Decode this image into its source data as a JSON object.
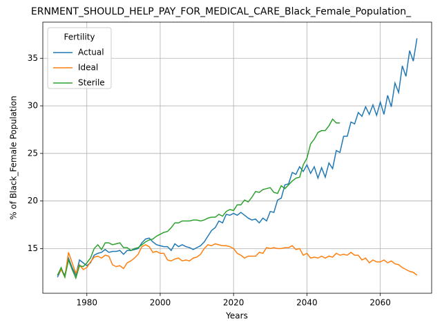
{
  "chart_data": {
    "type": "line",
    "title": "ERNMENT_SHOULD_HELP_PAY_FOR_MEDICAL_CARE_Black_Female_Population_",
    "xlabel": "Years",
    "ylabel": "% of Black_Female Population",
    "legend_title": "Fertility",
    "legend": "upper left",
    "grid": true,
    "xlim": [
      1968,
      2074
    ],
    "ylim": [
      10.3,
      38.8
    ],
    "xticks": [
      1980,
      2000,
      2020,
      2040,
      2060
    ],
    "yticks": [
      15,
      20,
      25,
      30,
      35
    ],
    "x": [
      1972,
      1973,
      1974,
      1975,
      1976,
      1977,
      1978,
      1979,
      1980,
      1981,
      1982,
      1983,
      1984,
      1985,
      1986,
      1987,
      1988,
      1989,
      1990,
      1991,
      1992,
      1993,
      1994,
      1995,
      1996,
      1997,
      1998,
      1999,
      2000,
      2001,
      2002,
      2003,
      2004,
      2005,
      2006,
      2007,
      2008,
      2009,
      2010,
      2011,
      2012,
      2013,
      2014,
      2015,
      2016,
      2017,
      2018,
      2019,
      2020,
      2021,
      2022,
      2023,
      2024,
      2025,
      2026,
      2027,
      2028,
      2029,
      2030,
      2031,
      2032,
      2033,
      2034,
      2035,
      2036,
      2037,
      2038,
      2039,
      2040,
      2041,
      2042,
      2043,
      2044,
      2045,
      2046,
      2047,
      2048,
      2049,
      2050,
      2051,
      2052,
      2053,
      2054,
      2055,
      2056,
      2057,
      2058,
      2059,
      2060,
      2061,
      2062,
      2063,
      2064,
      2065,
      2066,
      2067,
      2068,
      2069,
      2070
    ],
    "series": [
      {
        "name": "Actual",
        "color": "#1f77b4",
        "values": [
          12.0,
          12.8,
          12.2,
          14.0,
          13.0,
          12.2,
          13.8,
          13.5,
          13.2,
          13.5,
          14.3,
          14.5,
          14.6,
          14.9,
          14.6,
          14.7,
          14.7,
          14.8,
          14.4,
          14.8,
          14.8,
          14.9,
          15.0,
          15.6,
          16.0,
          16.1,
          15.7,
          15.4,
          15.3,
          15.2,
          15.2,
          14.8,
          15.5,
          15.2,
          15.4,
          15.2,
          15.1,
          14.9,
          15.1,
          15.3,
          15.7,
          16.3,
          16.9,
          17.2,
          17.9,
          17.7,
          18.6,
          18.5,
          18.7,
          18.5,
          18.8,
          18.5,
          18.2,
          18.0,
          18.1,
          17.7,
          18.2,
          17.9,
          18.9,
          18.8,
          20.1,
          20.3,
          21.7,
          21.8,
          23.0,
          22.8,
          23.6,
          23.1,
          23.8,
          22.9,
          23.6,
          22.4,
          23.5,
          22.5,
          24.0,
          23.4,
          25.3,
          25.1,
          26.8,
          26.8,
          28.3,
          28.1,
          29.3,
          28.9,
          29.9,
          29.1,
          30.1,
          29.0,
          30.4,
          29.1,
          31.1,
          29.9,
          32.4,
          31.4,
          34.2,
          33.1,
          35.8,
          34.7,
          37.1
        ]
      },
      {
        "name": "Ideal",
        "color": "#ff7f0e",
        "values": [
          12.2,
          12.8,
          12.0,
          14.6,
          13.5,
          12.4,
          13.3,
          12.8,
          13.0,
          13.6,
          14.1,
          14.2,
          14.0,
          14.3,
          14.2,
          13.3,
          13.1,
          13.2,
          12.9,
          13.5,
          13.7,
          14.0,
          14.4,
          15.2,
          15.4,
          15.2,
          14.6,
          14.7,
          14.5,
          14.5,
          13.8,
          13.7,
          13.9,
          14.0,
          13.7,
          13.8,
          13.7,
          14.0,
          14.1,
          14.4,
          15.0,
          15.4,
          15.3,
          15.5,
          15.4,
          15.3,
          15.3,
          15.2,
          15.0,
          14.5,
          14.3,
          14.0,
          14.2,
          14.2,
          14.2,
          14.6,
          14.5,
          15.1,
          15.0,
          15.1,
          15.0,
          15.0,
          15.1,
          15.1,
          15.3,
          14.9,
          15.0,
          14.3,
          14.5,
          14.0,
          14.1,
          14.0,
          14.2,
          14.0,
          14.2,
          14.1,
          14.5,
          14.3,
          14.4,
          14.3,
          14.6,
          14.3,
          14.3,
          13.8,
          14.0,
          13.5,
          13.8,
          13.6,
          13.6,
          13.8,
          13.5,
          13.7,
          13.4,
          13.3,
          13.0,
          12.8,
          12.6,
          12.5,
          12.2
        ]
      },
      {
        "name": "Sterile",
        "color": "#2ca02c",
        "values": [
          12.2,
          13.0,
          12.0,
          13.8,
          12.8,
          11.9,
          13.2,
          13.1,
          13.5,
          14.0,
          15.0,
          15.4,
          14.9,
          15.6,
          15.6,
          15.4,
          15.5,
          15.6,
          15.1,
          15.1,
          14.8,
          15.0,
          15.1,
          15.4,
          15.7,
          15.9,
          16.0,
          16.3,
          16.5,
          16.7,
          16.8,
          17.2,
          17.7,
          17.7,
          17.9,
          17.9,
          17.9,
          18.0,
          18.0,
          17.9,
          18.0,
          18.2,
          18.3,
          18.3,
          18.6,
          18.4,
          18.9,
          19.1,
          19.0,
          19.6,
          19.6,
          20.1,
          19.9,
          20.4,
          21.0,
          20.9,
          21.2,
          21.3,
          21.4,
          20.9,
          20.8,
          21.6,
          21.3,
          21.7,
          22.1,
          22.4,
          22.5,
          23.8,
          24.5,
          26.0,
          26.5,
          27.2,
          27.4,
          27.4,
          27.9,
          28.6,
          28.2,
          28.2,
          null,
          null,
          null,
          null,
          null,
          null,
          null,
          null,
          null,
          null,
          null,
          null,
          null,
          null,
          null,
          null,
          null,
          null,
          null,
          null,
          null
        ]
      }
    ]
  }
}
